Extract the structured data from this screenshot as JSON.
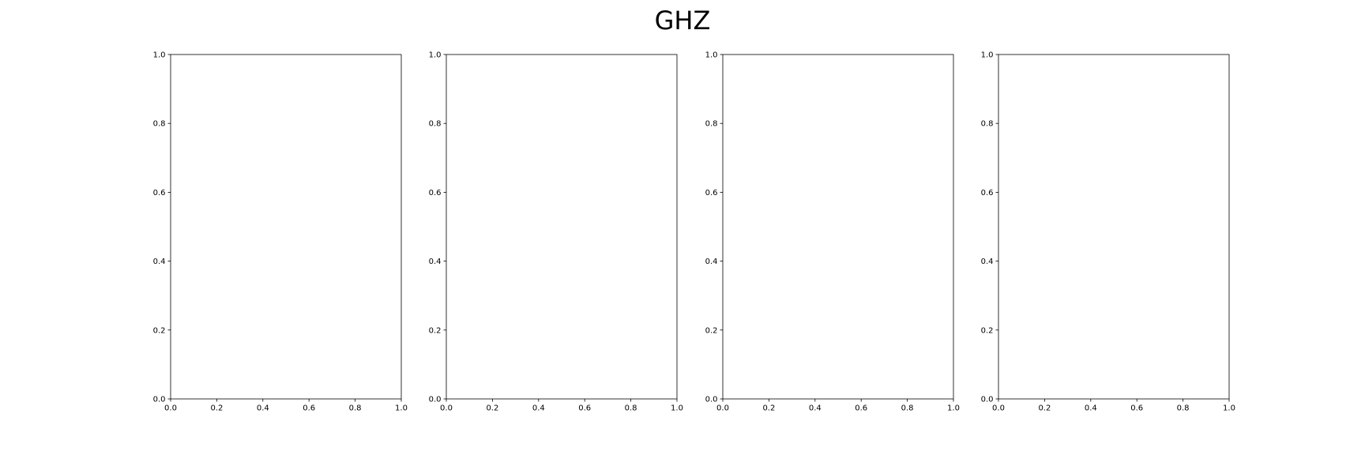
{
  "figure": {
    "title": "GHZ"
  },
  "chart_data": [
    {
      "type": "scatter",
      "title": "",
      "xlabel": "",
      "ylabel": "",
      "xlim": [
        0.0,
        1.0
      ],
      "ylim": [
        0.0,
        1.0
      ],
      "xticks": [
        "0.0",
        "0.2",
        "0.4",
        "0.6",
        "0.8",
        "1.0"
      ],
      "yticks": [
        "0.0",
        "0.2",
        "0.4",
        "0.6",
        "0.8",
        "1.0"
      ],
      "series": [],
      "grid": false
    },
    {
      "type": "scatter",
      "title": "",
      "xlabel": "",
      "ylabel": "",
      "xlim": [
        0.0,
        1.0
      ],
      "ylim": [
        0.0,
        1.0
      ],
      "xticks": [
        "0.0",
        "0.2",
        "0.4",
        "0.6",
        "0.8",
        "1.0"
      ],
      "yticks": [
        "0.0",
        "0.2",
        "0.4",
        "0.6",
        "0.8",
        "1.0"
      ],
      "series": [],
      "grid": false
    },
    {
      "type": "scatter",
      "title": "",
      "xlabel": "",
      "ylabel": "",
      "xlim": [
        0.0,
        1.0
      ],
      "ylim": [
        0.0,
        1.0
      ],
      "xticks": [
        "0.0",
        "0.2",
        "0.4",
        "0.6",
        "0.8",
        "1.0"
      ],
      "yticks": [
        "0.0",
        "0.2",
        "0.4",
        "0.6",
        "0.8",
        "1.0"
      ],
      "series": [],
      "grid": false
    },
    {
      "type": "scatter",
      "title": "",
      "xlabel": "",
      "ylabel": "",
      "xlim": [
        0.0,
        1.0
      ],
      "ylim": [
        0.0,
        1.0
      ],
      "xticks": [
        "0.0",
        "0.2",
        "0.4",
        "0.6",
        "0.8",
        "1.0"
      ],
      "yticks": [
        "0.0",
        "0.2",
        "0.4",
        "0.6",
        "0.8",
        "1.0"
      ],
      "series": [],
      "grid": false
    }
  ]
}
